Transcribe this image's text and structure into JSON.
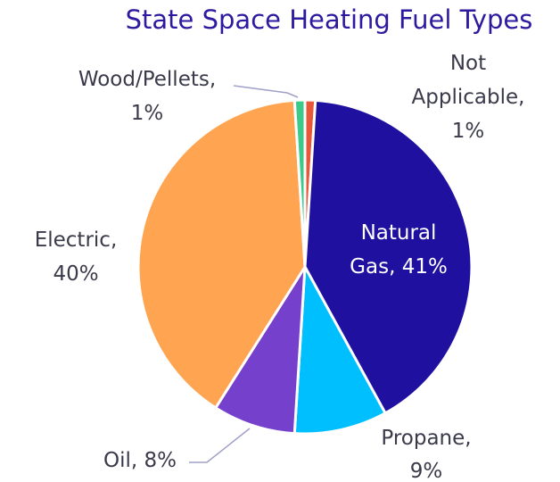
{
  "chart_data": {
    "type": "pie",
    "title": "State Space Heating Fuel Types",
    "values": [
      1,
      41,
      9,
      8,
      40,
      1
    ],
    "labels": [
      [
        "Not",
        "Applicable,",
        "1%"
      ],
      [
        "Natural",
        "Gas, 41%"
      ],
      [
        "Propane,",
        "9%"
      ],
      [
        "Oil, 8%"
      ],
      [
        "Electric,",
        "40%"
      ],
      [
        "Wood/Pellets,",
        "1%"
      ]
    ],
    "colors": [
      "#e8573a",
      "#1f10a0",
      "#00bfff",
      "#7440cc",
      "#ffa552",
      "#3cc98a"
    ]
  }
}
